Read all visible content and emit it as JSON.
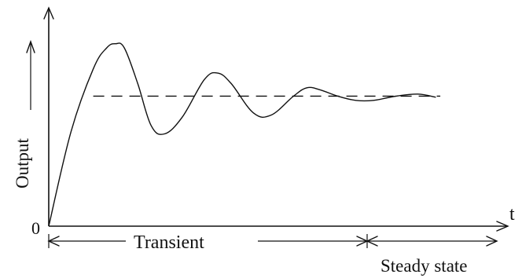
{
  "chart_data": {
    "type": "line",
    "title": "",
    "xlabel": "t",
    "ylabel": "Output",
    "origin_label": "0",
    "xlim": [
      0,
      100
    ],
    "ylim": [
      0,
      100
    ],
    "grid": false,
    "legend": "none",
    "setpoint": 62,
    "series": [
      {
        "values": [
          {
            "x": 0,
            "y": 0
          },
          {
            "x": 5,
            "y": 45
          },
          {
            "x": 10,
            "y": 75
          },
          {
            "x": 13,
            "y": 85
          },
          {
            "x": 15,
            "y": 87
          },
          {
            "x": 17,
            "y": 85
          },
          {
            "x": 20,
            "y": 68
          },
          {
            "x": 23,
            "y": 48
          },
          {
            "x": 26,
            "y": 44
          },
          {
            "x": 30,
            "y": 52
          },
          {
            "x": 35,
            "y": 70
          },
          {
            "x": 38,
            "y": 73
          },
          {
            "x": 41,
            "y": 68
          },
          {
            "x": 46,
            "y": 54
          },
          {
            "x": 50,
            "y": 53
          },
          {
            "x": 55,
            "y": 62
          },
          {
            "x": 58,
            "y": 66
          },
          {
            "x": 61,
            "y": 65
          },
          {
            "x": 65,
            "y": 62
          },
          {
            "x": 69,
            "y": 60
          },
          {
            "x": 73,
            "y": 60
          },
          {
            "x": 78,
            "y": 62
          },
          {
            "x": 83,
            "y": 63
          },
          {
            "x": 87,
            "y": 61.5
          }
        ]
      }
    ],
    "regions": [
      {
        "label": "Transient",
        "from": 0,
        "to": 67
      },
      {
        "label": "Steady state",
        "from": 67,
        "to": 100
      }
    ]
  }
}
